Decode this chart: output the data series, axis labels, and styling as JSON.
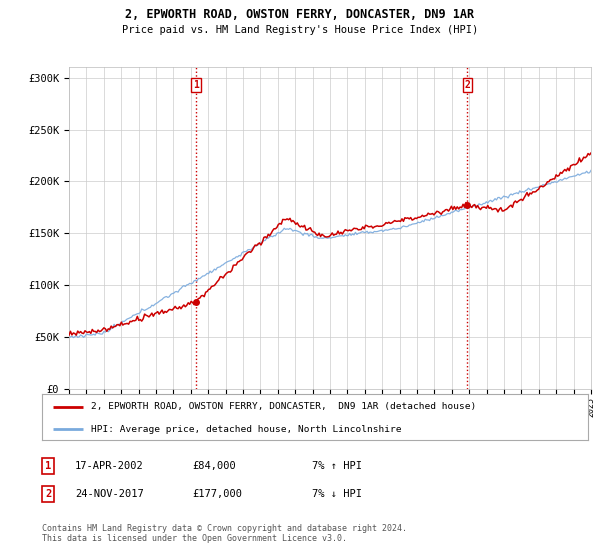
{
  "title": "2, EPWORTH ROAD, OWSTON FERRY, DONCASTER, DN9 1AR",
  "subtitle": "Price paid vs. HM Land Registry's House Price Index (HPI)",
  "legend_line1": "2, EPWORTH ROAD, OWSTON FERRY, DONCASTER,  DN9 1AR (detached house)",
  "legend_line2": "HPI: Average price, detached house, North Lincolnshire",
  "annotation1_date": "17-APR-2002",
  "annotation1_price": "£84,000",
  "annotation1_hpi": "7% ↑ HPI",
  "annotation2_date": "24-NOV-2017",
  "annotation2_price": "£177,000",
  "annotation2_hpi": "7% ↓ HPI",
  "footer": "Contains HM Land Registry data © Crown copyright and database right 2024.\nThis data is licensed under the Open Government Licence v3.0.",
  "ylim": [
    0,
    310000
  ],
  "yticks": [
    0,
    50000,
    100000,
    150000,
    200000,
    250000,
    300000
  ],
  "ytick_labels": [
    "£0",
    "£50K",
    "£100K",
    "£150K",
    "£200K",
    "£250K",
    "£300K"
  ],
  "sale1_x": 2002.3,
  "sale1_y": 84000,
  "sale2_x": 2017.9,
  "sale2_y": 177000,
  "xmin": 1995,
  "xmax": 2025,
  "red_color": "#cc0000",
  "blue_color": "#7aaadd",
  "dashed_color": "#cc0000",
  "background_color": "#ffffff",
  "grid_color": "#cccccc"
}
